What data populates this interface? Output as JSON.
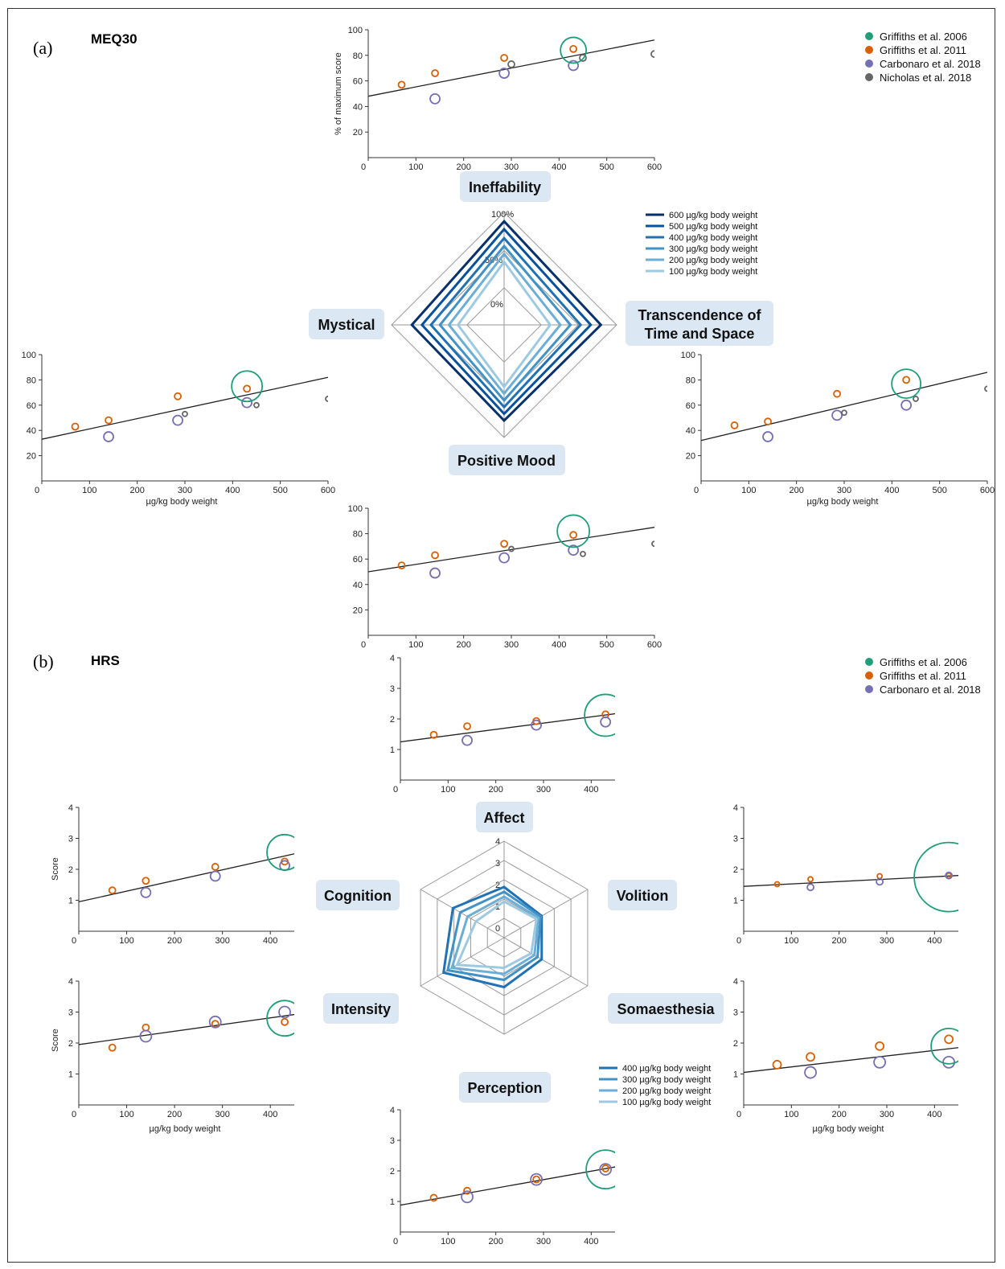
{
  "colors": {
    "griffiths2006": "#1f9e77",
    "griffiths2011": "#d95f02",
    "carbonaro2018": "#7570b3",
    "nicholas2018": "#666666",
    "radar": [
      "#9ecae1",
      "#6baed6",
      "#4292c6",
      "#2171b5",
      "#08519c",
      "#08306b"
    ],
    "label_bg": "#dbe8f4"
  },
  "panel_a": {
    "tag": "(a)",
    "title": "MEQ30",
    "legend": [
      "Griffiths et al. 2006",
      "Griffiths et al. 2011",
      "Carbonaro et al. 2018",
      "Nicholas et al. 2018"
    ],
    "radar_legend": [
      "600 µg/kg body weight",
      "500 µg/kg body weight",
      "400 µg/kg body weight",
      "300 µg/kg body weight",
      "200 µg/kg body weight",
      "100 µg/kg body weight"
    ],
    "radar_ticks": [
      "100%",
      "50%",
      "0%"
    ],
    "labels": {
      "top": "Ineffability",
      "left": "Mystical",
      "right_1": "Transcendence of",
      "right_2": "Time and Space",
      "bottom": "Positive Mood"
    },
    "ylabel": "% of maximum score",
    "xlabel": "µg/kg body weight"
  },
  "panel_b": {
    "tag": "(b)",
    "title": "HRS",
    "legend": [
      "Griffiths et al. 2006",
      "Griffiths et al. 2011",
      "Carbonaro et al. 2018"
    ],
    "radar_legend": [
      "400 µg/kg body weight",
      "300 µg/kg body weight",
      "200 µg/kg body weight",
      "100 µg/kg body weight"
    ],
    "radar_ticks": [
      "4",
      "3",
      "2",
      "1",
      "0"
    ],
    "labels": {
      "top": "Affect",
      "right_top": "Volition",
      "right_bottom": "Somaesthesia",
      "bottom": "Perception",
      "left_bottom": "Intensity",
      "left_top": "Cognition"
    },
    "ylabel": "Score",
    "xlabel": "µg/kg body weight"
  },
  "chart_data": [
    {
      "type": "scatter",
      "name": "Ineffability",
      "ylim": [
        0,
        100
      ],
      "xlim": [
        0,
        600
      ],
      "xticks": [
        0,
        100,
        200,
        300,
        400,
        500,
        600
      ],
      "yticks": [
        20,
        40,
        60,
        80,
        100
      ],
      "fit": [
        [
          0,
          48
        ],
        [
          600,
          92
        ]
      ],
      "points": [
        {
          "s": "griffiths2011",
          "x": 70,
          "y": 57,
          "r": 4
        },
        {
          "s": "griffiths2011",
          "x": 140,
          "y": 66,
          "r": 4
        },
        {
          "s": "griffiths2011",
          "x": 285,
          "y": 78,
          "r": 4
        },
        {
          "s": "griffiths2011",
          "x": 430,
          "y": 85,
          "r": 4
        },
        {
          "s": "carbonaro2018",
          "x": 140,
          "y": 46,
          "r": 6
        },
        {
          "s": "carbonaro2018",
          "x": 285,
          "y": 66,
          "r": 6
        },
        {
          "s": "carbonaro2018",
          "x": 430,
          "y": 72,
          "r": 6
        },
        {
          "s": "nicholas2018",
          "x": 300,
          "y": 73,
          "r": 4
        },
        {
          "s": "nicholas2018",
          "x": 450,
          "y": 78,
          "r": 4
        },
        {
          "s": "nicholas2018",
          "x": 600,
          "y": 81,
          "r": 4
        },
        {
          "s": "griffiths2006",
          "x": 430,
          "y": 84,
          "r": 16
        }
      ]
    },
    {
      "type": "scatter",
      "name": "Mystical",
      "ylim": [
        0,
        100
      ],
      "xlim": [
        0,
        600
      ],
      "xticks": [
        0,
        100,
        200,
        300,
        400,
        500,
        600
      ],
      "yticks": [
        20,
        40,
        60,
        80,
        100
      ],
      "fit": [
        [
          0,
          33
        ],
        [
          600,
          82
        ]
      ],
      "points": [
        {
          "s": "griffiths2011",
          "x": 70,
          "y": 43,
          "r": 4
        },
        {
          "s": "griffiths2011",
          "x": 140,
          "y": 48,
          "r": 4
        },
        {
          "s": "griffiths2011",
          "x": 285,
          "y": 67,
          "r": 4
        },
        {
          "s": "griffiths2011",
          "x": 430,
          "y": 73,
          "r": 4
        },
        {
          "s": "carbonaro2018",
          "x": 140,
          "y": 35,
          "r": 6
        },
        {
          "s": "carbonaro2018",
          "x": 285,
          "y": 48,
          "r": 6
        },
        {
          "s": "carbonaro2018",
          "x": 430,
          "y": 62,
          "r": 6
        },
        {
          "s": "nicholas2018",
          "x": 300,
          "y": 53,
          "r": 3
        },
        {
          "s": "nicholas2018",
          "x": 450,
          "y": 60,
          "r": 3
        },
        {
          "s": "nicholas2018",
          "x": 600,
          "y": 65,
          "r": 3
        },
        {
          "s": "griffiths2006",
          "x": 430,
          "y": 75,
          "r": 19
        }
      ]
    },
    {
      "type": "scatter",
      "name": "Transcendence of Time and Space",
      "ylim": [
        0,
        100
      ],
      "xlim": [
        0,
        600
      ],
      "xticks": [
        0,
        100,
        200,
        300,
        400,
        500,
        600
      ],
      "yticks": [
        20,
        40,
        60,
        80,
        100
      ],
      "fit": [
        [
          0,
          32
        ],
        [
          600,
          86
        ]
      ],
      "points": [
        {
          "s": "griffiths2011",
          "x": 70,
          "y": 44,
          "r": 4
        },
        {
          "s": "griffiths2011",
          "x": 140,
          "y": 47,
          "r": 4
        },
        {
          "s": "griffiths2011",
          "x": 285,
          "y": 69,
          "r": 4
        },
        {
          "s": "griffiths2011",
          "x": 430,
          "y": 80,
          "r": 4
        },
        {
          "s": "carbonaro2018",
          "x": 140,
          "y": 35,
          "r": 6
        },
        {
          "s": "carbonaro2018",
          "x": 285,
          "y": 52,
          "r": 6
        },
        {
          "s": "carbonaro2018",
          "x": 430,
          "y": 60,
          "r": 6
        },
        {
          "s": "nicholas2018",
          "x": 300,
          "y": 54,
          "r": 3
        },
        {
          "s": "nicholas2018",
          "x": 450,
          "y": 65,
          "r": 3
        },
        {
          "s": "nicholas2018",
          "x": 600,
          "y": 73,
          "r": 3
        },
        {
          "s": "griffiths2006",
          "x": 430,
          "y": 77,
          "r": 18
        }
      ]
    },
    {
      "type": "scatter",
      "name": "Positive Mood",
      "ylim": [
        0,
        100
      ],
      "xlim": [
        0,
        600
      ],
      "xticks": [
        0,
        100,
        200,
        300,
        400,
        500,
        600
      ],
      "yticks": [
        20,
        40,
        60,
        80,
        100
      ],
      "fit": [
        [
          0,
          50
        ],
        [
          600,
          85
        ]
      ],
      "points": [
        {
          "s": "griffiths2011",
          "x": 70,
          "y": 55,
          "r": 4
        },
        {
          "s": "griffiths2011",
          "x": 140,
          "y": 63,
          "r": 4
        },
        {
          "s": "griffiths2011",
          "x": 285,
          "y": 72,
          "r": 4
        },
        {
          "s": "griffiths2011",
          "x": 430,
          "y": 79,
          "r": 4
        },
        {
          "s": "carbonaro2018",
          "x": 140,
          "y": 49,
          "r": 6
        },
        {
          "s": "carbonaro2018",
          "x": 285,
          "y": 61,
          "r": 6
        },
        {
          "s": "carbonaro2018",
          "x": 430,
          "y": 67,
          "r": 6
        },
        {
          "s": "nicholas2018",
          "x": 300,
          "y": 68,
          "r": 3
        },
        {
          "s": "nicholas2018",
          "x": 450,
          "y": 64,
          "r": 3
        },
        {
          "s": "nicholas2018",
          "x": 600,
          "y": 72,
          "r": 3
        },
        {
          "s": "griffiths2006",
          "x": 430,
          "y": 82,
          "r": 20
        }
      ]
    },
    {
      "type": "scatter",
      "name": "Affect",
      "ylim": [
        0,
        4
      ],
      "xlim": [
        0,
        450
      ],
      "xticks": [
        0,
        100,
        200,
        300,
        400
      ],
      "yticks": [
        1,
        2,
        3,
        4
      ],
      "fit": [
        [
          0,
          1.25
        ],
        [
          450,
          2.17
        ]
      ],
      "points": [
        {
          "s": "griffiths2011",
          "x": 70,
          "y": 1.48,
          "r": 4
        },
        {
          "s": "griffiths2011",
          "x": 140,
          "y": 1.76,
          "r": 4
        },
        {
          "s": "griffiths2011",
          "x": 285,
          "y": 1.93,
          "r": 4
        },
        {
          "s": "griffiths2011",
          "x": 430,
          "y": 2.15,
          "r": 4
        },
        {
          "s": "carbonaro2018",
          "x": 140,
          "y": 1.3,
          "r": 6
        },
        {
          "s": "carbonaro2018",
          "x": 285,
          "y": 1.8,
          "r": 6
        },
        {
          "s": "carbonaro2018",
          "x": 430,
          "y": 1.9,
          "r": 6
        },
        {
          "s": "griffiths2006",
          "x": 430,
          "y": 2.12,
          "r": 26
        }
      ]
    },
    {
      "type": "scatter",
      "name": "Cognition",
      "ylim": [
        0,
        4
      ],
      "xlim": [
        0,
        450
      ],
      "xticks": [
        0,
        100,
        200,
        300,
        400
      ],
      "yticks": [
        1,
        2,
        3,
        4
      ],
      "fit": [
        [
          0,
          0.95
        ],
        [
          450,
          2.5
        ]
      ],
      "points": [
        {
          "s": "griffiths2011",
          "x": 70,
          "y": 1.32,
          "r": 4
        },
        {
          "s": "griffiths2011",
          "x": 140,
          "y": 1.63,
          "r": 4
        },
        {
          "s": "griffiths2011",
          "x": 285,
          "y": 2.08,
          "r": 4
        },
        {
          "s": "griffiths2011",
          "x": 430,
          "y": 2.25,
          "r": 4
        },
        {
          "s": "carbonaro2018",
          "x": 140,
          "y": 1.25,
          "r": 6
        },
        {
          "s": "carbonaro2018",
          "x": 285,
          "y": 1.78,
          "r": 6
        },
        {
          "s": "carbonaro2018",
          "x": 430,
          "y": 2.12,
          "r": 6
        },
        {
          "s": "griffiths2006",
          "x": 430,
          "y": 2.55,
          "r": 22
        }
      ]
    },
    {
      "type": "scatter",
      "name": "Volition",
      "ylim": [
        0,
        4
      ],
      "xlim": [
        0,
        450
      ],
      "xticks": [
        0,
        100,
        200,
        300,
        400
      ],
      "yticks": [
        1,
        2,
        3,
        4
      ],
      "fit": [
        [
          0,
          1.45
        ],
        [
          450,
          1.8
        ]
      ],
      "points": [
        {
          "s": "griffiths2011",
          "x": 70,
          "y": 1.52,
          "r": 3
        },
        {
          "s": "griffiths2011",
          "x": 140,
          "y": 1.68,
          "r": 3
        },
        {
          "s": "griffiths2011",
          "x": 285,
          "y": 1.78,
          "r": 3
        },
        {
          "s": "griffiths2011",
          "x": 430,
          "y": 1.8,
          "r": 3
        },
        {
          "s": "carbonaro2018",
          "x": 140,
          "y": 1.42,
          "r": 4
        },
        {
          "s": "carbonaro2018",
          "x": 285,
          "y": 1.6,
          "r": 4
        },
        {
          "s": "carbonaro2018",
          "x": 430,
          "y": 1.8,
          "r": 4
        },
        {
          "s": "griffiths2006",
          "x": 430,
          "y": 1.75,
          "r": 43
        }
      ]
    },
    {
      "type": "scatter",
      "name": "Intensity",
      "ylim": [
        0,
        4
      ],
      "xlim": [
        0,
        450
      ],
      "xticks": [
        0,
        100,
        200,
        300,
        400
      ],
      "yticks": [
        1,
        2,
        3,
        4
      ],
      "fit": [
        [
          0,
          1.95
        ],
        [
          450,
          2.92
        ]
      ],
      "points": [
        {
          "s": "griffiths2011",
          "x": 70,
          "y": 1.85,
          "r": 4
        },
        {
          "s": "griffiths2011",
          "x": 140,
          "y": 2.5,
          "r": 4
        },
        {
          "s": "griffiths2011",
          "x": 285,
          "y": 2.62,
          "r": 4
        },
        {
          "s": "griffiths2011",
          "x": 430,
          "y": 2.68,
          "r": 4
        },
        {
          "s": "carbonaro2018",
          "x": 140,
          "y": 2.22,
          "r": 7
        },
        {
          "s": "carbonaro2018",
          "x": 285,
          "y": 2.68,
          "r": 7
        },
        {
          "s": "carbonaro2018",
          "x": 430,
          "y": 3.0,
          "r": 7
        },
        {
          "s": "griffiths2006",
          "x": 430,
          "y": 2.8,
          "r": 22
        }
      ]
    },
    {
      "type": "scatter",
      "name": "Somaesthesia",
      "ylim": [
        0,
        4
      ],
      "xlim": [
        0,
        450
      ],
      "xticks": [
        0,
        100,
        200,
        300,
        400
      ],
      "yticks": [
        1,
        2,
        3,
        4
      ],
      "fit": [
        [
          0,
          1.05
        ],
        [
          450,
          1.85
        ]
      ],
      "points": [
        {
          "s": "griffiths2011",
          "x": 70,
          "y": 1.3,
          "r": 5
        },
        {
          "s": "griffiths2011",
          "x": 140,
          "y": 1.55,
          "r": 5
        },
        {
          "s": "griffiths2011",
          "x": 285,
          "y": 1.9,
          "r": 5
        },
        {
          "s": "griffiths2011",
          "x": 430,
          "y": 2.12,
          "r": 5
        },
        {
          "s": "carbonaro2018",
          "x": 140,
          "y": 1.05,
          "r": 7
        },
        {
          "s": "carbonaro2018",
          "x": 285,
          "y": 1.38,
          "r": 7
        },
        {
          "s": "carbonaro2018",
          "x": 430,
          "y": 1.38,
          "r": 7
        },
        {
          "s": "griffiths2006",
          "x": 430,
          "y": 1.9,
          "r": 22
        }
      ]
    },
    {
      "type": "scatter",
      "name": "Perception",
      "ylim": [
        0,
        4
      ],
      "xlim": [
        0,
        450
      ],
      "xticks": [
        0,
        100,
        200,
        300,
        400
      ],
      "yticks": [
        1,
        2,
        3,
        4
      ],
      "fit": [
        [
          0,
          0.88
        ],
        [
          450,
          2.13
        ]
      ],
      "points": [
        {
          "s": "griffiths2011",
          "x": 70,
          "y": 1.12,
          "r": 4
        },
        {
          "s": "griffiths2011",
          "x": 140,
          "y": 1.35,
          "r": 4
        },
        {
          "s": "griffiths2011",
          "x": 285,
          "y": 1.72,
          "r": 4
        },
        {
          "s": "griffiths2011",
          "x": 430,
          "y": 2.08,
          "r": 4
        },
        {
          "s": "carbonaro2018",
          "x": 140,
          "y": 1.15,
          "r": 7
        },
        {
          "s": "carbonaro2018",
          "x": 285,
          "y": 1.72,
          "r": 7
        },
        {
          "s": "carbonaro2018",
          "x": 430,
          "y": 2.05,
          "r": 7
        },
        {
          "s": "griffiths2006",
          "x": 430,
          "y": 2.05,
          "r": 24
        }
      ]
    },
    {
      "type": "radar",
      "name": "MEQ30 radar",
      "axes": [
        "Ineffability",
        "Transcendence of Time and Space",
        "Positive Mood",
        "Mystical"
      ],
      "range": [
        0,
        100
      ],
      "series": [
        {
          "name": "600 µg/kg body weight",
          "values": [
            92,
            86,
            85,
            82
          ]
        },
        {
          "name": "500 µg/kg body weight",
          "values": [
            85,
            77,
            79,
            73
          ]
        },
        {
          "name": "400 µg/kg body weight",
          "values": [
            77,
            68,
            73,
            65
          ]
        },
        {
          "name": "300 µg/kg body weight",
          "values": [
            70,
            59,
            67,
            57
          ]
        },
        {
          "name": "200 µg/kg body weight",
          "values": [
            63,
            50,
            61,
            49
          ]
        },
        {
          "name": "100 µg/kg body weight",
          "values": [
            56,
            41,
            55,
            41
          ]
        }
      ]
    },
    {
      "type": "radar",
      "name": "HRS radar",
      "axes": [
        "Affect",
        "Volition",
        "Somaesthesia",
        "Perception",
        "Intensity",
        "Cognition"
      ],
      "range": [
        0,
        4
      ],
      "series": [
        {
          "name": "400 µg/kg body weight",
          "values": [
            2.1,
            1.8,
            1.8,
            2.05,
            2.9,
            2.45
          ]
        },
        {
          "name": "300 µg/kg body weight",
          "values": [
            1.9,
            1.75,
            1.6,
            1.75,
            2.7,
            2.1
          ]
        },
        {
          "name": "200 µg/kg body weight",
          "values": [
            1.7,
            1.65,
            1.45,
            1.5,
            2.5,
            1.75
          ]
        },
        {
          "name": "100 µg/kg body weight",
          "values": [
            1.5,
            1.55,
            1.3,
            1.25,
            2.25,
            1.35
          ]
        }
      ]
    }
  ]
}
